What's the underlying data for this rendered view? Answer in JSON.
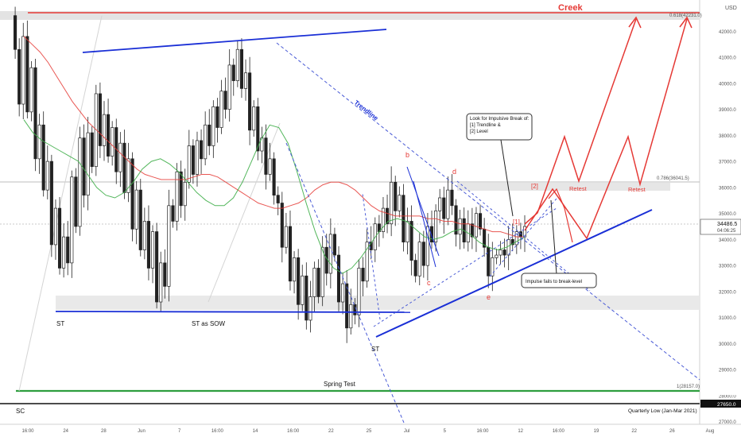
{
  "app": {
    "currency_label": "USD"
  },
  "chart_data": {
    "type": "candlestick-annotated",
    "price_axis": {
      "ticks": [
        42000.0,
        41000.0,
        40000.0,
        39000.0,
        38000.0,
        37000.0,
        36000.0,
        35000.0,
        34000.0,
        33000.0,
        32000.0,
        31000.0,
        30000.0,
        29000.0,
        28000.0,
        27000.0
      ],
      "ylim": [
        26900,
        43200
      ]
    },
    "time_axis": {
      "ticks": [
        "16:00",
        "24",
        "28",
        "Jun",
        "7",
        "16:00",
        "14",
        "16:00",
        "22",
        "25",
        "Jul",
        "5",
        "16:00",
        "12",
        "16:00",
        "19",
        "22",
        "26",
        "Aug"
      ]
    },
    "current_price": {
      "value": 34486.5,
      "label": "34486.5",
      "countdown": "04:06:25"
    },
    "levels": [
      {
        "name": "creek",
        "label": "Creek",
        "price": 42231,
        "fib_label": "0.618(42231.0)",
        "color": "#e53935"
      },
      {
        "name": "fib-0786",
        "label": "0.786(36041.5)",
        "price": 36041.5,
        "color": "#888888"
      },
      {
        "name": "fib-1",
        "label": "1(28157.0)",
        "price": 28157,
        "color": "#2e9e3e"
      },
      {
        "name": "quarterly-low",
        "label": "Quarterly Low (Jan-Mar 2021)",
        "price": 27650,
        "price_tag": "27650.0",
        "color": "#111111"
      }
    ],
    "wyckoff_labels": [
      {
        "text": "SC"
      },
      {
        "text": "ST"
      },
      {
        "text": "ST as SOW"
      },
      {
        "text": "Spring Test"
      },
      {
        "text": "ST"
      }
    ],
    "wave_labels": [
      "b",
      "d",
      "c",
      "e",
      "[1]",
      "[2]"
    ],
    "annotations": {
      "trendline": "Trendline",
      "callout_top": [
        "Look for Impulsive Break of:",
        "[1] Trendline &",
        "[2] Level"
      ],
      "callout_bottom": "Impulse fails to break-level",
      "retest": [
        "Retest",
        "Retest"
      ]
    },
    "price_path": [
      42600,
      41300,
      39200,
      41800,
      38900,
      40600,
      37100,
      38400,
      35900,
      37000,
      33800,
      35200,
      32900,
      34100,
      33100,
      36400,
      34500,
      37900,
      35700,
      38100,
      36800,
      39600,
      37600,
      38800,
      37200,
      38300,
      36600,
      37700,
      35800,
      37100,
      34400,
      35900,
      33600,
      34700,
      32900,
      34300,
      31600,
      33100,
      32200,
      35300,
      34700,
      36600,
      35300,
      36200,
      37600,
      36500,
      37800,
      37100,
      38400,
      37600,
      39100,
      38300,
      39700,
      39000,
      40700,
      40100,
      41300,
      39800,
      40400,
      38200,
      39100,
      37400,
      37900,
      36500,
      37100,
      35700,
      35400,
      33700,
      34500,
      32400,
      33300,
      31500,
      32600,
      30900,
      31800,
      32900,
      31800,
      33700,
      32700,
      34200,
      33400,
      31600,
      32300,
      30600,
      31500,
      31100,
      32900,
      32400,
      33900,
      33600,
      34600,
      34300,
      35200,
      34600,
      36200,
      35100,
      35700,
      33900,
      34700,
      33200,
      32600,
      33900,
      33000,
      34500,
      33900,
      35100,
      35600,
      34800,
      35900,
      35300,
      34200,
      34800,
      33900,
      34600,
      34100,
      35000,
      34400,
      33700,
      32600,
      33300,
      33400,
      33600,
      33400,
      34000,
      33800,
      34300,
      34100,
      34500
    ],
    "ma_red": [
      41800,
      41500,
      41200,
      40800,
      40300,
      39800,
      39300,
      38900,
      38500,
      38200,
      37900,
      37600,
      37300,
      37000,
      36700,
      36500,
      36400,
      36300,
      36300,
      36300,
      36300,
      36400,
      36500,
      36500,
      36400,
      36200,
      36000,
      35800,
      35600,
      35400,
      35300,
      35200,
      35200,
      35300,
      35400,
      35600,
      35900,
      36100,
      36200,
      36200,
      36100,
      35900,
      35600,
      35300,
      35100,
      35000,
      34900,
      34900,
      34900,
      34900,
      34800,
      34800,
      34700,
      34700,
      34600,
      34600,
      34500,
      34400,
      34300,
      34300,
      34200,
      34100,
      34100
    ],
    "ma_green": [
      38600,
      38100,
      37800,
      37600,
      37400,
      37200,
      37000,
      36500,
      36000,
      35700,
      35600,
      35800,
      36200,
      36700,
      37000,
      37100,
      36900,
      36600,
      36200,
      35800,
      35500,
      35300,
      35300,
      35600,
      36200,
      37000,
      37800,
      38400,
      38300,
      37700,
      36600,
      35400,
      34300,
      33400,
      32900,
      32700,
      32900,
      33300,
      33800,
      34300,
      34700,
      34800,
      34700,
      34400,
      34100,
      34000,
      34100,
      34300,
      34400,
      34200,
      33900,
      33700,
      33600,
      33700,
      33900,
      34100
    ],
    "projection": {
      "color": "#e53935",
      "path_a": [
        34200,
        35400,
        36800,
        35900,
        38100,
        40400,
        42100
      ],
      "path_b": [
        35200,
        35700,
        34600,
        33900,
        35500,
        37000,
        35800,
        38200,
        42100
      ]
    }
  }
}
